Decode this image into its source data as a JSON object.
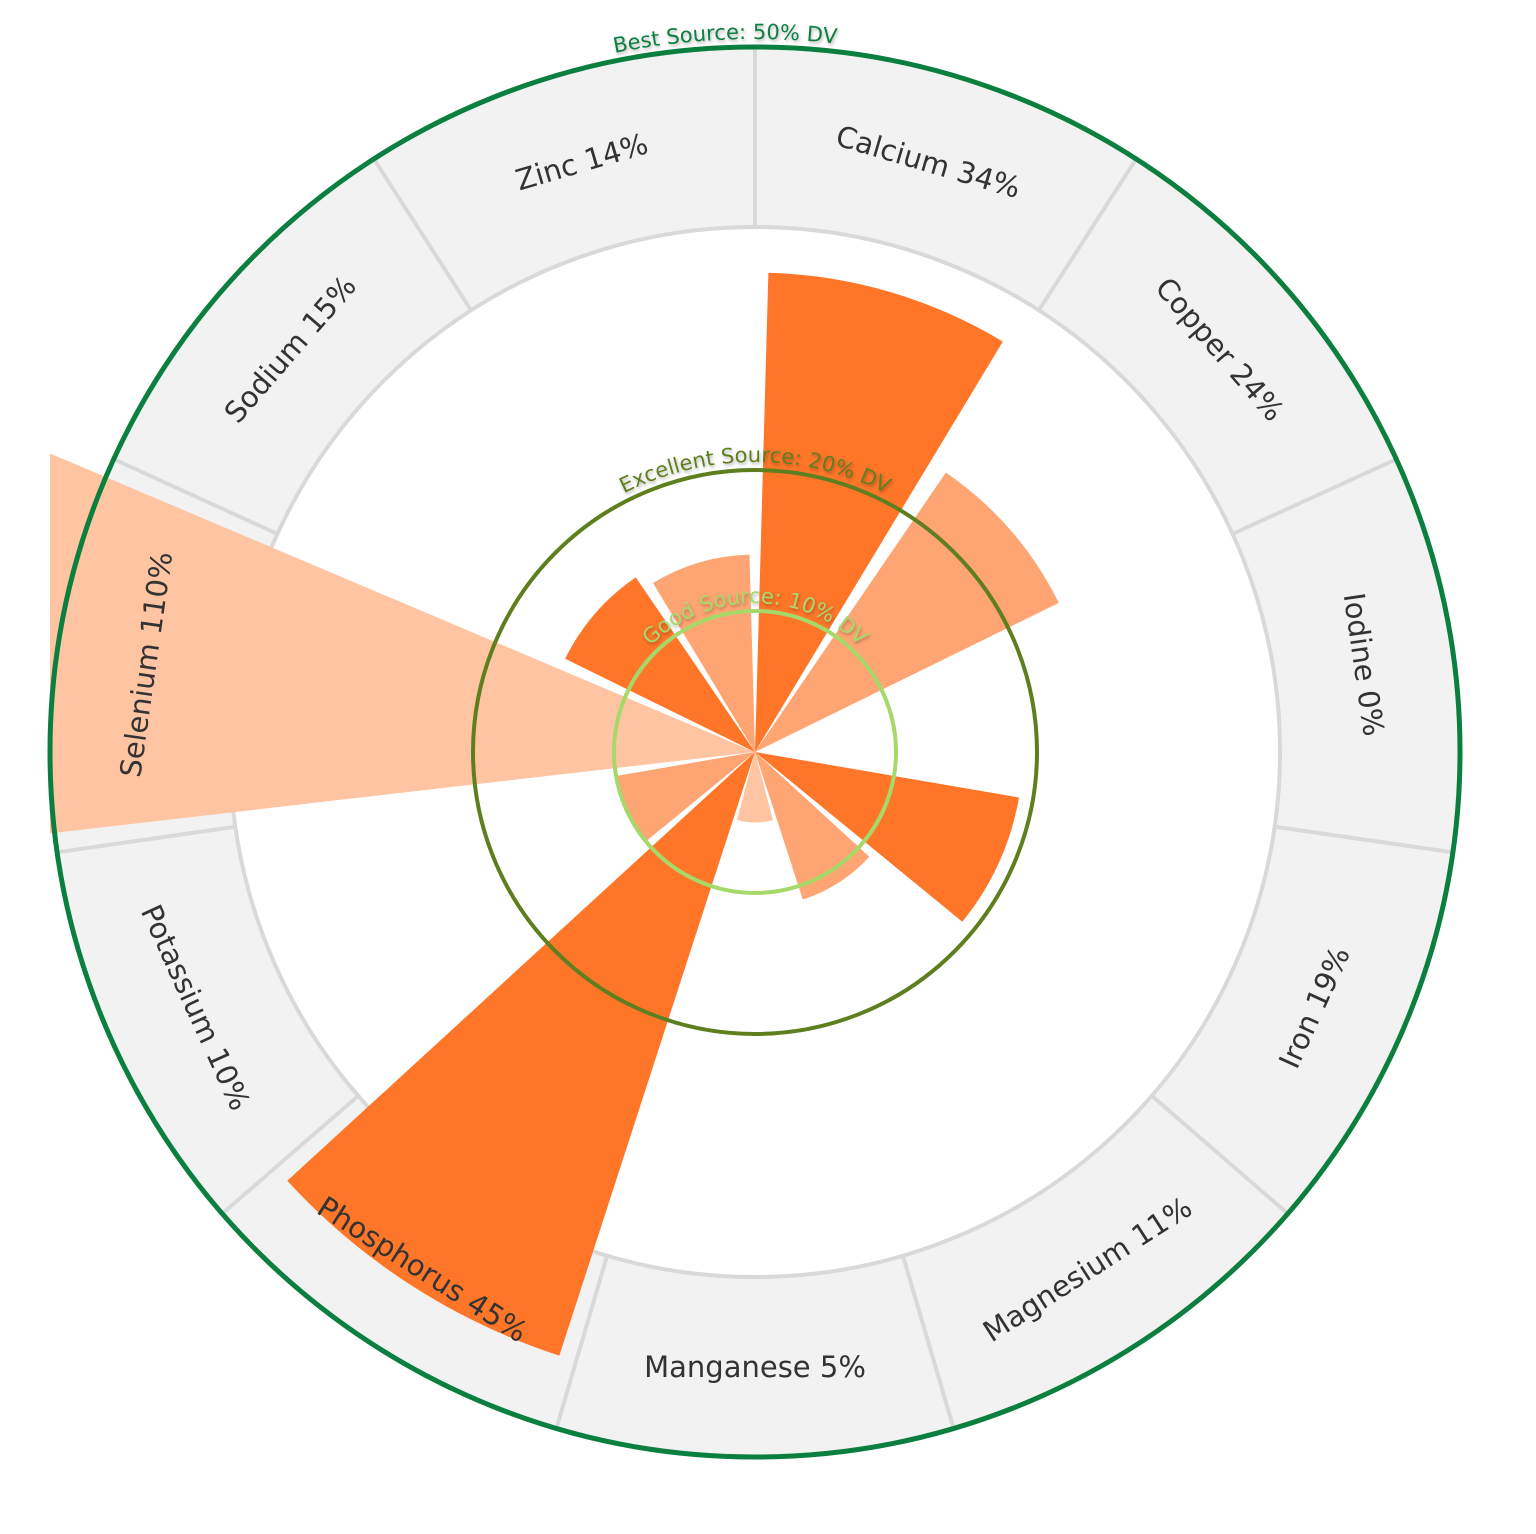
{
  "chart_data": {
    "type": "polar-bar",
    "unit": "% DV",
    "categories": [
      "Calcium",
      "Copper",
      "Iodine",
      "Iron",
      "Magnesium",
      "Manganese",
      "Phosphorus",
      "Potassium",
      "Selenium",
      "Sodium",
      "Zinc"
    ],
    "values": [
      34,
      24,
      0,
      19,
      11,
      5,
      45,
      10,
      110,
      15,
      14
    ],
    "labels": [
      "Calcium 34%",
      "Copper 24%",
      "Iodine 0%",
      "Iron 19%",
      "Magnesium 11%",
      "Manganese 5%",
      "Phosphorus 45%",
      "Potassium 10%",
      "Selenium 110%",
      "Sodium 15%",
      "Zinc 14%"
    ],
    "bar_colors": [
      "#ff7629",
      "#ffa573",
      "#ff7629",
      "#ff7629",
      "#ffa573",
      "#ffc4a1",
      "#ff7629",
      "#ffa573",
      "#ffc4a1",
      "#ff7629",
      "#ffa573"
    ],
    "radial_max": 50,
    "thresholds": [
      {
        "value": 10,
        "label": "Good Source: 10% DV",
        "color": "#a6d96a"
      },
      {
        "value": 20,
        "label": "Excellent Source: 20% DV",
        "color": "#5f7f1f"
      },
      {
        "value": 50,
        "label": "Best Source: 50% DV",
        "color": "#0a7f3f"
      }
    ],
    "label_ring_color": "#f2f2f2",
    "divider_color": "#d9d9d9"
  }
}
